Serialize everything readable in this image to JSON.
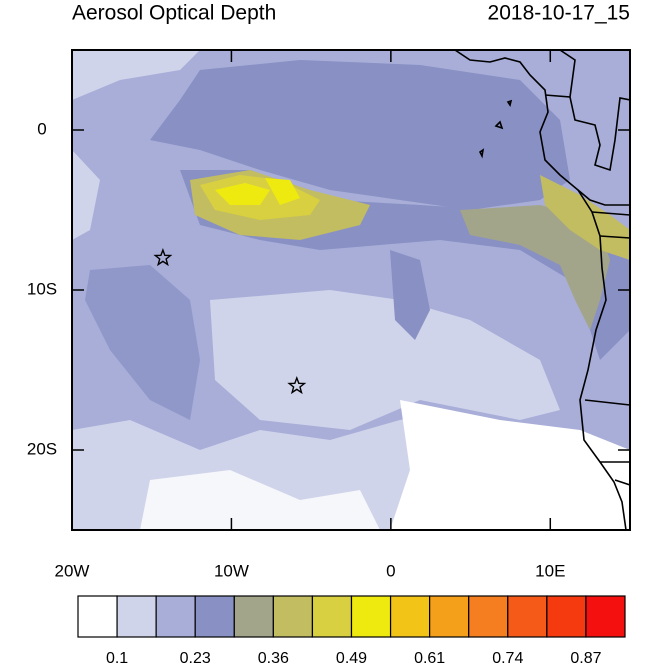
{
  "map": {
    "title": "Aerosol Optical Depth",
    "time": "2018-10-17_15",
    "xlim": [
      -20,
      15
    ],
    "ylim": [
      -25,
      5
    ],
    "xticks": [
      {
        "value": -20,
        "label": "20W"
      },
      {
        "value": -10,
        "label": "10W"
      },
      0,
      {
        "value": 10,
        "label": "10E"
      }
    ],
    "yticks": [
      0,
      {
        "value": -10,
        "label": "10S"
      },
      {
        "value": -20,
        "label": "20S"
      }
    ],
    "markers": [
      {
        "lon": -14.3,
        "lat": -8
      },
      {
        "lon": -5.9,
        "lat": -16
      }
    ],
    "colorbar": {
      "colors": [
        "#ffffff",
        "#d0d4ea",
        "#a8aed8",
        "#8890c4",
        "#a3a58a",
        "#c2bd60",
        "#d8d040",
        "#eeea10",
        "#f2c418",
        "#f5a01a",
        "#f57e20",
        "#f55a18",
        "#f53a10",
        "#f51010"
      ],
      "labels": [
        0.1,
        0.23,
        0.36,
        0.49,
        0.61,
        0.74,
        0.87
      ]
    }
  }
}
